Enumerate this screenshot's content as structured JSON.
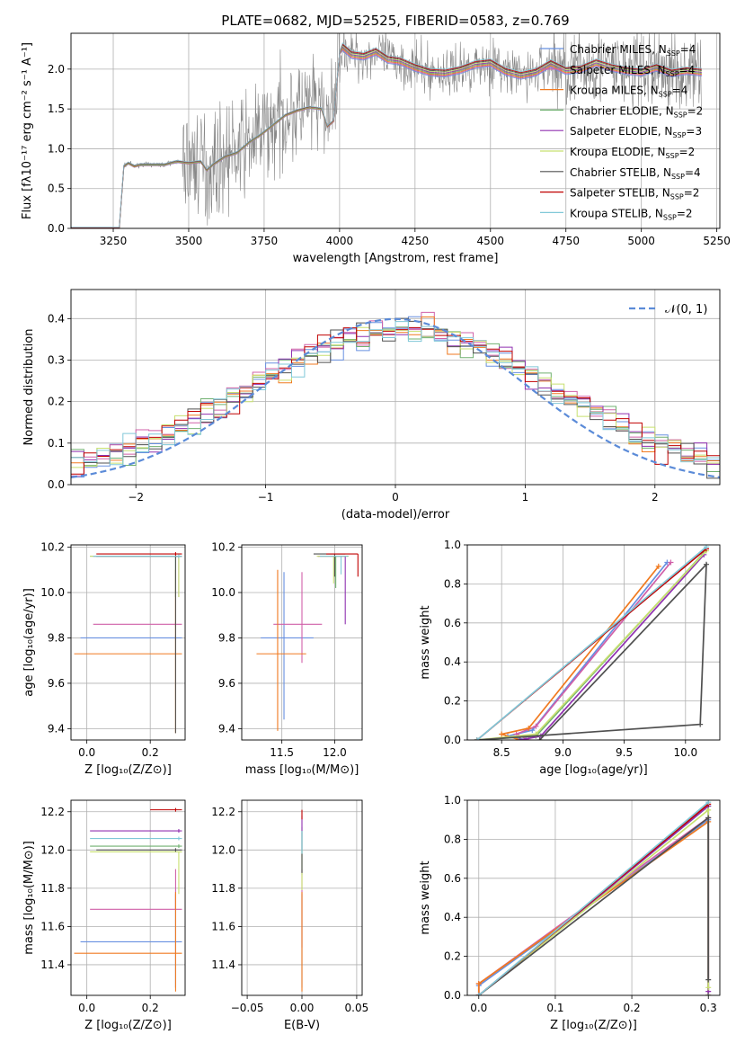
{
  "figure_title": "PLATE=0682, MJD=52525, FIBERID=0583, z=0.769",
  "series_colors": [
    "#6890e0",
    "#d060a8",
    "#f07a20",
    "#70b070",
    "#9030b0",
    "#c8e070",
    "#505050",
    "#c00000",
    "#80c8d8"
  ],
  "chart_data": [
    {
      "id": "spectrum",
      "type": "line",
      "xlabel": "wavelength [Angstrom, rest frame]",
      "ylabel": "Flux [fλ10⁻¹⁷ erg cm⁻² s⁻¹ A⁻¹]",
      "xlim": [
        3110,
        5260
      ],
      "ylim": [
        0,
        2.45
      ],
      "xticks": [
        3250,
        3500,
        3750,
        4000,
        4250,
        4500,
        4750,
        5000,
        5250
      ],
      "yticks": [
        0.0,
        0.5,
        1.0,
        1.5,
        2.0
      ],
      "legend": {
        "placement": "top-right",
        "entries": [
          {
            "pre": "Chabrier MILES, N",
            "sub": "SSP",
            "post": "=4"
          },
          {
            "pre": "Salpeter MILES, N",
            "sub": "SSP",
            "post": "=4"
          },
          {
            "pre": "Kroupa MILES, N",
            "sub": "SSP",
            "post": "=4"
          },
          {
            "pre": "Chabrier ELODIE, N",
            "sub": "SSP",
            "post": "=2"
          },
          {
            "pre": "Salpeter ELODIE, N",
            "sub": "SSP",
            "post": "=3"
          },
          {
            "pre": "Kroupa ELODIE, N",
            "sub": "SSP",
            "post": "=2"
          },
          {
            "pre": "Chabrier STELIB, N",
            "sub": "SSP",
            "post": "=4"
          },
          {
            "pre": "Salpeter STELIB, N",
            "sub": "SSP",
            "post": "=2"
          },
          {
            "pre": "Kroupa STELIB, N",
            "sub": "SSP",
            "post": "=2"
          }
        ]
      },
      "model_x": [
        3110,
        3270,
        3285,
        3300,
        3320,
        3340,
        3380,
        3420,
        3460,
        3500,
        3540,
        3560,
        3580,
        3620,
        3660,
        3700,
        3740,
        3780,
        3820,
        3860,
        3900,
        3940,
        3960,
        3980,
        4000,
        4010,
        4040,
        4080,
        4120,
        4160,
        4200,
        4250,
        4300,
        4350,
        4400,
        4450,
        4500,
        4550,
        4600,
        4650,
        4700,
        4750,
        4800,
        4850,
        4900,
        4950,
        5000,
        5050,
        5100,
        5150,
        5200
      ],
      "model_y": [
        0,
        0,
        0.78,
        0.82,
        0.78,
        0.8,
        0.8,
        0.8,
        0.84,
        0.82,
        0.84,
        0.73,
        0.8,
        0.9,
        0.95,
        1.08,
        1.18,
        1.3,
        1.42,
        1.48,
        1.52,
        1.5,
        1.28,
        1.35,
        2.2,
        2.28,
        2.18,
        2.16,
        2.22,
        2.12,
        2.1,
        2.02,
        1.96,
        1.95,
        1.99,
        2.06,
        2.08,
        1.97,
        1.92,
        1.96,
        2.07,
        1.98,
        2.0,
        2.08,
        2.02,
        1.98,
        1.96,
        2.02,
        1.95,
        1.98,
        1.96
      ],
      "data_note": "observed flux (grey, noisy) shown as thin grey line"
    },
    {
      "id": "residuals",
      "type": "histogram",
      "xlabel": "(data-model)/error",
      "ylabel": "Normed distribution",
      "xlim": [
        -2.5,
        2.5
      ],
      "ylim": [
        0,
        0.47
      ],
      "xticks": [
        -2,
        -1,
        0,
        1,
        2
      ],
      "yticks": [
        0.0,
        0.1,
        0.2,
        0.3,
        0.4
      ],
      "legend_label": "𝒩(0, 1)",
      "bin_width": 0.1
    },
    {
      "id": "age_vs_Z",
      "type": "errorbar",
      "xlabel": "Z [log₁₀(Z/Z⊙)]",
      "ylabel": "age  [log₁₀(age/yr)]",
      "xlim": [
        -0.05,
        0.31
      ],
      "ylim": [
        9.35,
        10.21
      ],
      "xticks": [
        0.0,
        0.2
      ],
      "yticks": [
        9.4,
        9.6,
        9.8,
        10.0,
        10.2
      ],
      "points": [
        {
          "x": 0.28,
          "xerr": [
            0.3,
            0.02
          ],
          "y": 9.8,
          "yerr": [
            0,
            0
          ],
          "c": 0
        },
        {
          "x": 0.28,
          "xerr": [
            0.26,
            0.02
          ],
          "y": 9.86,
          "yerr": [
            0,
            0
          ],
          "c": 1
        },
        {
          "x": 0.28,
          "xerr": [
            0.32,
            0.02
          ],
          "y": 9.73,
          "yerr": [
            0.35,
            0.37
          ],
          "c": 2
        },
        {
          "x": 0.28,
          "xerr": [
            0.27,
            0.02
          ],
          "y": 10.16,
          "yerr": [
            0.18,
            0.0
          ],
          "c": 3
        },
        {
          "x": 0.29,
          "xerr": [
            0.27,
            0.01
          ],
          "y": 10.16,
          "yerr": [
            0.18,
            0.0
          ],
          "c": 4
        },
        {
          "x": 0.29,
          "xerr": [
            0.28,
            0.01
          ],
          "y": 10.16,
          "yerr": [
            0.18,
            0.0
          ],
          "c": 5
        },
        {
          "x": 0.28,
          "xerr": [
            0.25,
            0.02
          ],
          "y": 10.16,
          "yerr": [
            0.78,
            0.0
          ],
          "c": 6
        },
        {
          "x": 0.28,
          "xerr": [
            0.25,
            0.02
          ],
          "y": 10.17,
          "yerr": [
            0.0,
            0.0
          ],
          "c": 7
        },
        {
          "x": 0.29,
          "xerr": [
            0.27,
            0.01
          ],
          "y": 10.16,
          "yerr": [
            0.0,
            0.0
          ],
          "c": 8
        }
      ]
    },
    {
      "id": "age_vs_mass",
      "type": "errorbar",
      "xlabel": "mass [log₁₀(M/M⊙)]",
      "ylabel": "",
      "xlim": [
        11.12,
        12.26
      ],
      "ylim": [
        9.35,
        10.21
      ],
      "xticks": [
        11.5,
        12.0
      ],
      "yticks": [
        9.4,
        9.6,
        9.8,
        10.0,
        10.2
      ],
      "points": [
        {
          "x": 11.52,
          "xerr": [
            0.22,
            0.28
          ],
          "y": 9.8,
          "yerr": [
            0.36,
            0.29
          ],
          "c": 0
        },
        {
          "x": 11.69,
          "xerr": [
            0.27,
            0.19
          ],
          "y": 9.86,
          "yerr": [
            0.17,
            0.23
          ],
          "c": 1
        },
        {
          "x": 11.46,
          "xerr": [
            0.2,
            0.27
          ],
          "y": 9.73,
          "yerr": [
            0.34,
            0.37
          ],
          "c": 2
        },
        {
          "x": 12.01,
          "xerr": [
            0.17,
            0.12
          ],
          "y": 10.16,
          "yerr": [
            0.14,
            0.0
          ],
          "c": 3
        },
        {
          "x": 12.1,
          "xerr": [
            0.26,
            0.0
          ],
          "y": 10.16,
          "yerr": [
            0.3,
            0.0
          ],
          "c": 4
        },
        {
          "x": 11.99,
          "xerr": [
            0.16,
            0.12
          ],
          "y": 10.16,
          "yerr": [
            0.12,
            0.0
          ],
          "c": 5
        },
        {
          "x": 12.0,
          "xerr": [
            0.2,
            0.1
          ],
          "y": 10.17,
          "yerr": [
            0.1,
            0.0
          ],
          "c": 6
        },
        {
          "x": 12.22,
          "xerr": [
            0.3,
            0.0
          ],
          "y": 10.17,
          "yerr": [
            0.1,
            0.0
          ],
          "c": 7
        },
        {
          "x": 12.06,
          "xerr": [
            0.2,
            0.06
          ],
          "y": 10.16,
          "yerr": [
            0.08,
            0.0
          ],
          "c": 8
        }
      ]
    },
    {
      "id": "weight_vs_age",
      "type": "line",
      "xlabel": "age  [log₁₀(age/yr)]",
      "ylabel": "mass weight",
      "xlim": [
        8.22,
        10.28
      ],
      "ylim": [
        0.0,
        1.0
      ],
      "xticks": [
        8.5,
        9.0,
        9.5,
        10.0
      ],
      "yticks": [
        0.0,
        0.2,
        0.4,
        0.6,
        0.8,
        1.0
      ],
      "series": [
        {
          "c": 0,
          "x": [
            8.7,
            8.55,
            8.75,
            9.85
          ],
          "y": [
            0.0,
            0.02,
            0.05,
            0.91
          ]
        },
        {
          "c": 1,
          "x": [
            8.72,
            8.62,
            8.78,
            9.88
          ],
          "y": [
            0.0,
            0.03,
            0.07,
            0.91
          ]
        },
        {
          "c": 2,
          "x": [
            8.65,
            8.5,
            8.72,
            9.78
          ],
          "y": [
            0.0,
            0.03,
            0.06,
            0.89
          ]
        },
        {
          "c": 3,
          "x": [
            8.3,
            8.78,
            10.15
          ],
          "y": [
            0.0,
            0.02,
            0.96
          ]
        },
        {
          "c": 4,
          "x": [
            8.65,
            8.82,
            10.15
          ],
          "y": [
            0.0,
            0.02,
            0.95
          ]
        },
        {
          "c": 5,
          "x": [
            8.3,
            8.78,
            10.17
          ],
          "y": [
            0.0,
            0.03,
            0.97
          ]
        },
        {
          "c": 6,
          "x": [
            8.3,
            10.12,
            10.17,
            8.81
          ],
          "y": [
            0.0,
            0.08,
            0.9,
            0.0
          ]
        },
        {
          "c": 7,
          "x": [
            8.3,
            10.17
          ],
          "y": [
            0.0,
            0.98
          ]
        },
        {
          "c": 8,
          "x": [
            8.3,
            10.17
          ],
          "y": [
            0.0,
            0.99
          ]
        }
      ]
    },
    {
      "id": "mass_vs_Z",
      "type": "errorbar",
      "xlabel": "Z [log₁₀(Z/Z⊙)]",
      "ylabel": "mass [log₁₀(M/M⊙)]",
      "xlim": [
        -0.05,
        0.31
      ],
      "ylim": [
        11.24,
        12.26
      ],
      "xticks": [
        0.0,
        0.2
      ],
      "yticks": [
        11.4,
        11.6,
        11.8,
        12.0,
        12.2
      ],
      "points": [
        {
          "x": 0.28,
          "xerr": [
            0.3,
            0.02
          ],
          "y": 11.52,
          "yerr": [
            0.24,
            0.25
          ],
          "c": 0
        },
        {
          "x": 0.28,
          "xerr": [
            0.27,
            0.02
          ],
          "y": 11.69,
          "yerr": [
            0.0,
            0.21
          ],
          "c": 1
        },
        {
          "x": 0.28,
          "xerr": [
            0.32,
            0.02
          ],
          "y": 11.46,
          "yerr": [
            0.2,
            0.32
          ],
          "c": 2
        },
        {
          "x": 0.29,
          "xerr": [
            0.28,
            0.01
          ],
          "y": 12.02,
          "yerr": [
            0.0,
            0.0
          ],
          "c": 3
        },
        {
          "x": 0.29,
          "xerr": [
            0.28,
            0.01
          ],
          "y": 12.1,
          "yerr": [
            0.0,
            0.0
          ],
          "c": 4
        },
        {
          "x": 0.29,
          "xerr": [
            0.28,
            0.01
          ],
          "y": 11.99,
          "yerr": [
            0.22,
            0.0
          ],
          "c": 5
        },
        {
          "x": 0.28,
          "xerr": [
            0.25,
            0.02
          ],
          "y": 12.0,
          "yerr": [
            0.0,
            0.0
          ],
          "c": 6
        },
        {
          "x": 0.28,
          "xerr": [
            0.08,
            0.02
          ],
          "y": 12.21,
          "yerr": [
            0.0,
            0.0
          ],
          "c": 7
        },
        {
          "x": 0.29,
          "xerr": [
            0.28,
            0.01
          ],
          "y": 12.06,
          "yerr": [
            0.0,
            0.0
          ],
          "c": 8
        }
      ]
    },
    {
      "id": "mass_vs_ebv",
      "type": "errorbar",
      "xlabel": "E(B-V)",
      "ylabel": "",
      "xlim": [
        -0.055,
        0.055
      ],
      "ylim": [
        11.24,
        12.26
      ],
      "xticks": [
        -0.05,
        0.0,
        0.05
      ],
      "yticks": [
        11.4,
        11.6,
        11.8,
        12.0,
        12.2
      ],
      "points": [
        {
          "x": 0,
          "xerr": [
            0,
            0
          ],
          "y": 11.52,
          "yerr": [
            0.24,
            0.25
          ],
          "c": 0
        },
        {
          "x": 0,
          "xerr": [
            0,
            0
          ],
          "y": 11.69,
          "yerr": [
            0.2,
            0.21
          ],
          "c": 1
        },
        {
          "x": 0,
          "xerr": [
            0,
            0
          ],
          "y": 11.46,
          "yerr": [
            0.2,
            0.32
          ],
          "c": 2
        },
        {
          "x": 0,
          "xerr": [
            0,
            0
          ],
          "y": 12.02,
          "yerr": [
            0.15,
            0.1
          ],
          "c": 3
        },
        {
          "x": 0,
          "xerr": [
            0,
            0
          ],
          "y": 12.1,
          "yerr": [
            0.1,
            0.08
          ],
          "c": 4
        },
        {
          "x": 0,
          "xerr": [
            0,
            0
          ],
          "y": 11.99,
          "yerr": [
            0.2,
            0.1
          ],
          "c": 5
        },
        {
          "x": 0,
          "xerr": [
            0,
            0
          ],
          "y": 12.0,
          "yerr": [
            0.12,
            0.1
          ],
          "c": 6
        },
        {
          "x": 0,
          "xerr": [
            0,
            0
          ],
          "y": 12.21,
          "yerr": [
            0.05,
            0.0
          ],
          "c": 7
        },
        {
          "x": 0,
          "xerr": [
            0,
            0
          ],
          "y": 12.06,
          "yerr": [
            0.08,
            0.04
          ],
          "c": 8
        }
      ]
    },
    {
      "id": "weight_vs_Z",
      "type": "line",
      "xlabel": "Z [log₁₀(Z/Z⊙)]",
      "ylabel": "mass weight",
      "xlim": [
        -0.015,
        0.315
      ],
      "ylim": [
        0.0,
        1.0
      ],
      "xticks": [
        0.0,
        0.1,
        0.2,
        0.3
      ],
      "yticks": [
        0.0,
        0.2,
        0.4,
        0.6,
        0.8,
        1.0
      ],
      "series": [
        {
          "c": 0,
          "x": [
            0.0,
            0.0,
            0.3,
            0.3
          ],
          "y": [
            0.0,
            0.05,
            0.9,
            0.0
          ]
        },
        {
          "c": 1,
          "x": [
            0.0,
            0.0,
            0.3,
            0.3
          ],
          "y": [
            0.0,
            0.06,
            0.91,
            0.0
          ]
        },
        {
          "c": 2,
          "x": [
            0.0,
            0.0,
            0.3,
            0.3
          ],
          "y": [
            0.0,
            0.06,
            0.89,
            0.0
          ]
        },
        {
          "c": 3,
          "x": [
            0.0,
            0.3,
            0.3
          ],
          "y": [
            0.0,
            0.97,
            0.0
          ]
        },
        {
          "c": 4,
          "x": [
            0.0,
            0.3,
            0.3
          ],
          "y": [
            0.0,
            0.97,
            0.02
          ]
        },
        {
          "c": 5,
          "x": [
            0.0,
            0.3,
            0.3
          ],
          "y": [
            0.0,
            0.95,
            0.04
          ]
        },
        {
          "c": 6,
          "x": [
            0.0,
            0.3,
            0.3
          ],
          "y": [
            0.0,
            0.91,
            0.08
          ]
        },
        {
          "c": 7,
          "x": [
            0.0,
            0.3
          ],
          "y": [
            0.0,
            0.98
          ]
        },
        {
          "c": 8,
          "x": [
            0.0,
            0.3
          ],
          "y": [
            0.0,
            0.99
          ]
        }
      ]
    }
  ]
}
